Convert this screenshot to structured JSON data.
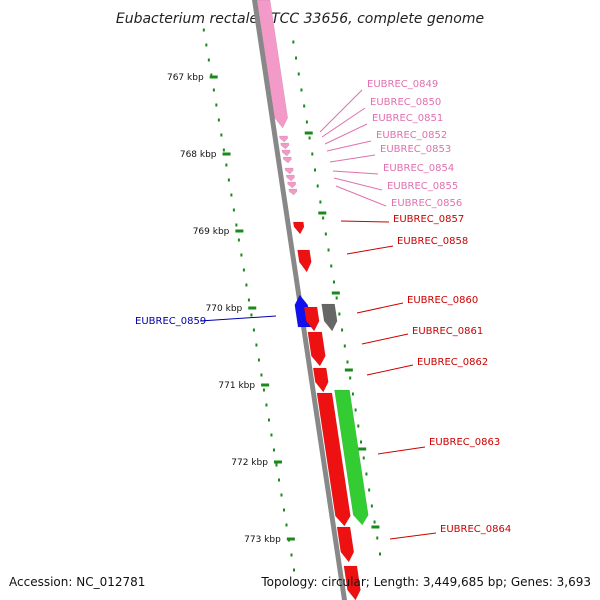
{
  "title": "Eubacterium rectale ATCC 33656, complete genome",
  "footer": {
    "accession": "Accession: NC_012781",
    "summary": "Topology: circular; Length: 3,449,685 bp; Genes: 3,693"
  },
  "kbp_ticks": [
    "767 kbp",
    "768 kbp",
    "769 kbp",
    "770 kbp",
    "771 kbp",
    "772 kbp",
    "773 kbp"
  ],
  "colors": {
    "backbone": "#888888",
    "tick": "#1a8a1a",
    "pink": "#f49ac9",
    "red": "#ee1111",
    "blue": "#1111ee",
    "green": "#33cc33",
    "gray": "#666666",
    "pink_label": "#e070b0",
    "red_label": "#cc0000",
    "blue_label": "#0000aa"
  },
  "genes": [
    {
      "id": "EUBREC_0849",
      "color": "pink"
    },
    {
      "id": "EUBREC_0850",
      "color": "pink"
    },
    {
      "id": "EUBREC_0851",
      "color": "pink"
    },
    {
      "id": "EUBREC_0852",
      "color": "pink"
    },
    {
      "id": "EUBREC_0853",
      "color": "pink"
    },
    {
      "id": "EUBREC_0854",
      "color": "pink"
    },
    {
      "id": "EUBREC_0855",
      "color": "pink"
    },
    {
      "id": "EUBREC_0856",
      "color": "pink"
    },
    {
      "id": "EUBREC_0857",
      "color": "red"
    },
    {
      "id": "EUBREC_0858",
      "color": "red"
    },
    {
      "id": "EUBREC_0859",
      "color": "blue"
    },
    {
      "id": "EUBREC_0860",
      "color": "red"
    },
    {
      "id": "EUBREC_0861",
      "color": "red"
    },
    {
      "id": "EUBREC_0862",
      "color": "red"
    },
    {
      "id": "EUBREC_0863",
      "color": "red"
    },
    {
      "id": "EUBREC_0864",
      "color": "red"
    }
  ]
}
